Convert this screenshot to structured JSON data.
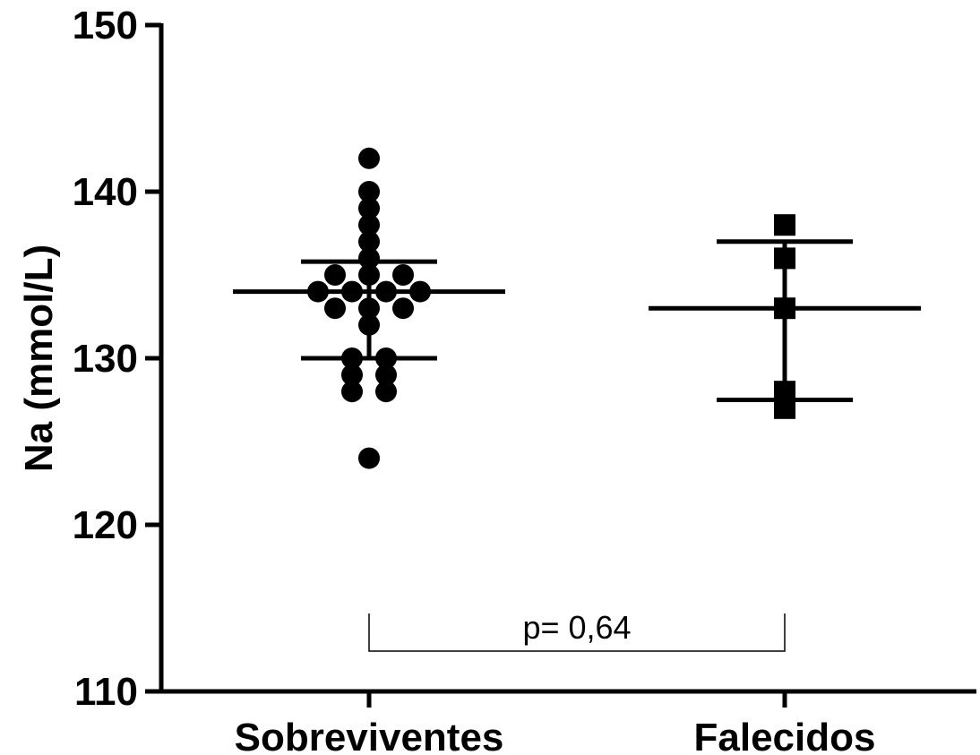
{
  "chart_data": {
    "type": "scatter",
    "ylabel": "Na (mmol/L)",
    "ylim": [
      110,
      150
    ],
    "yticks": [
      110,
      120,
      130,
      140,
      150
    ],
    "categories": [
      "Sobreviventes",
      "Falecidos"
    ],
    "groups": [
      {
        "category": "Sobreviventes",
        "marker": "circle",
        "values": [
          142,
          140,
          139,
          138,
          137,
          136,
          135,
          135,
          135,
          134,
          134,
          134,
          134,
          133,
          133,
          133,
          132,
          130,
          130,
          129,
          129,
          128,
          128,
          124
        ],
        "median": 134,
        "q1": 130,
        "q3": 135.8
      },
      {
        "category": "Falecidos",
        "marker": "square",
        "values": [
          138,
          136,
          133,
          128,
          127
        ],
        "median": 133,
        "q1": 127.5,
        "q3": 137
      }
    ],
    "annotation": {
      "text": "p= 0,64",
      "between": [
        "Sobreviventes",
        "Falecidos"
      ]
    },
    "grid": false,
    "legend": "none"
  }
}
